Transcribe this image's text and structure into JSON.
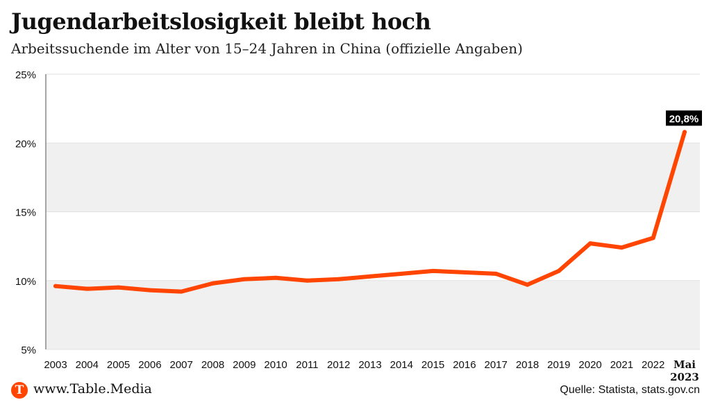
{
  "title": "Jugendarbeitslosigkeit bleibt hoch",
  "subtitle": "Arbeitssuchende im Alter von 15–24 Jahren in China (offizielle Angaben)",
  "footer": {
    "site": "www.Table.Media",
    "logo_letter": "T",
    "source": "Quelle: Statista, stats.gov.cn"
  },
  "colors": {
    "line": "#ff4500",
    "band": "#f0f0f0",
    "logo": "#ff4500"
  },
  "chart_data": {
    "type": "line",
    "categories": [
      "2003",
      "2004",
      "2005",
      "2006",
      "2007",
      "2008",
      "2009",
      "2010",
      "2011",
      "2012",
      "2013",
      "2014",
      "2015",
      "2016",
      "2017",
      "2018",
      "2019",
      "2020",
      "2021",
      "2022",
      "Mai 2023"
    ],
    "values": [
      9.6,
      9.4,
      9.5,
      9.3,
      9.2,
      9.8,
      10.1,
      10.2,
      10.0,
      10.1,
      10.3,
      10.5,
      10.7,
      10.6,
      10.5,
      9.7,
      10.7,
      12.7,
      12.4,
      13.1,
      20.8
    ],
    "ylim": [
      5,
      25
    ],
    "yticks": [
      "5%",
      "10%",
      "15%",
      "20%",
      "25%"
    ],
    "yticks_values": [
      5,
      10,
      15,
      20,
      25
    ],
    "annotation": "20,8%",
    "grid": "alternating bands"
  }
}
